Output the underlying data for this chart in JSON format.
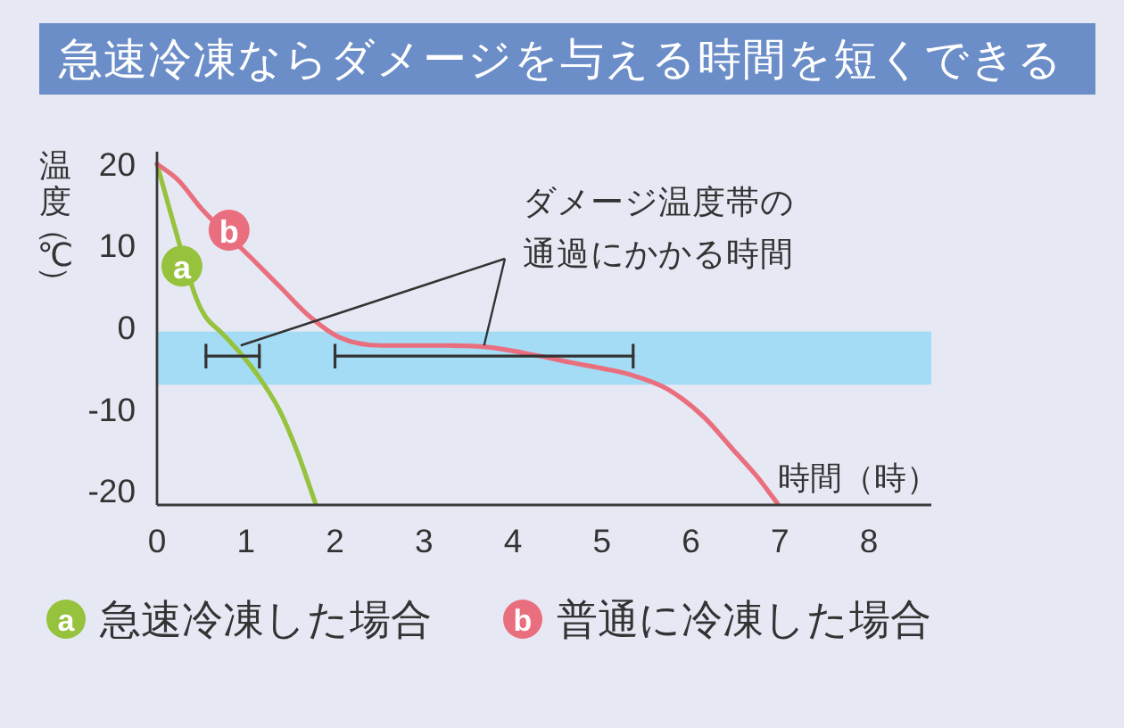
{
  "chart_data": {
    "type": "line",
    "title": "急速冷凍ならダメージを与える時間を短くできる",
    "xlabel": "時間（時）",
    "ylabel": "温度（℃）",
    "xlim": [
      0,
      8.7
    ],
    "ylim": [
      -21.7,
      21.5
    ],
    "xticks": [
      0,
      1,
      2,
      3,
      4,
      5,
      6,
      7,
      8
    ],
    "yticks": [
      -20,
      -10,
      0,
      10,
      20
    ],
    "marker": "none",
    "legend": "bottom",
    "series": [
      {
        "name": "急速冷凍した場合",
        "color": "#96c23e",
        "x": [
          0,
          0.14,
          0.44,
          0.54,
          0.74,
          0.98,
          1.18,
          1.38,
          1.58,
          1.78
        ],
        "values": [
          20,
          14.5,
          3.6,
          1.4,
          -0.8,
          -3.7,
          -6.6,
          -10.2,
          -15.3,
          -21.5
        ]
      },
      {
        "name": "普通に冷凍した場合",
        "color": "#ea6f7e",
        "x": [
          0,
          0.24,
          0.51,
          1.05,
          1.38,
          1.71,
          2.05,
          2.52,
          3.26,
          3.72,
          4.26,
          4.66,
          5.0,
          5.33,
          5.73,
          6.14,
          6.47,
          6.74,
          6.97
        ],
        "values": [
          20,
          18.0,
          14.4,
          8.6,
          5.0,
          1.4,
          -1.2,
          -2.2,
          -2.2,
          -2.4,
          -3.4,
          -4.3,
          -5.0,
          -5.8,
          -7.5,
          -10.9,
          -14.9,
          -18.2,
          -21.5
        ]
      },
      {
        "color": "#333333",
        "x": [
          0.55,
          1.15
        ],
        "values": [
          -3.5,
          -3.5
        ],
        "errors": [
          1.5,
          1.5
        ]
      },
      {
        "color": "#333333",
        "x": [
          2.0,
          5.35
        ],
        "values": [
          -3.5,
          -3.5
        ],
        "errors": [
          1.5,
          1.5
        ]
      }
    ],
    "bands": [
      {
        "axis": "y",
        "from": -0.5,
        "to": -7,
        "color": "#a5dcf5"
      }
    ],
    "annotations": [
      {
        "text": "ダメージ温度帯の通過にかかる時間",
        "x": 0.94,
        "y": -2.2
      },
      {
        "text": "a",
        "x": 0.28,
        "y": 7.5
      },
      {
        "text": "b",
        "x": 0.81,
        "y": 11.9
      }
    ]
  }
}
